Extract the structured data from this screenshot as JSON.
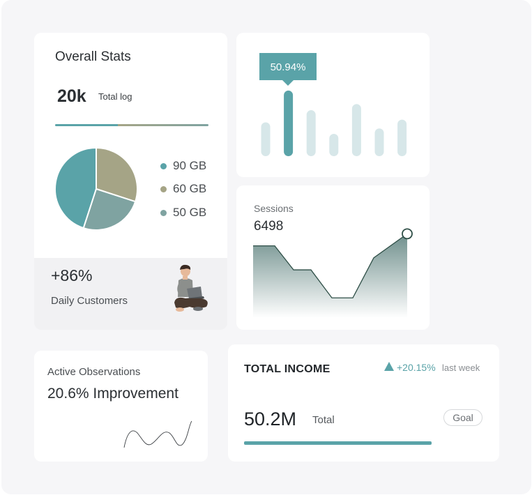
{
  "colors": {
    "teal": "#5aa3a8",
    "olive": "#a5a486",
    "sage": "#7fa3a1",
    "light_teal": "#d7e7e9",
    "dark_line": "#2f4f47"
  },
  "overall_stats": {
    "title": "Overall Stats",
    "total_value": "20k",
    "total_label": "Total log",
    "legend": [
      {
        "label": "90 GB",
        "color": "#5aa3a8"
      },
      {
        "label": "60 GB",
        "color": "#a5a486"
      },
      {
        "label": "50 GB",
        "color": "#7fa3a1"
      }
    ]
  },
  "daily_customers": {
    "value": "+86%",
    "label": "Daily Customers"
  },
  "bars_widget": {
    "tooltip": "50.94%",
    "highlighted_index": 1
  },
  "sessions": {
    "label": "Sessions",
    "value": "6498"
  },
  "active_observations": {
    "label": "Active Observations",
    "value": "20.6% Improvement"
  },
  "total_income": {
    "title": "TOTAL INCOME",
    "trend_icon": "triangle-up-icon",
    "trend": "+20.15%",
    "period": "last week",
    "value": "50.2M",
    "value_label": "Total",
    "goal_label": "Goal"
  },
  "chart_data": [
    {
      "type": "pie",
      "title": "",
      "labels": [
        "90 GB",
        "60 GB",
        "50 GB"
      ],
      "values": [
        90,
        60,
        50
      ],
      "colors": [
        "#5aa3a8",
        "#a5a486",
        "#7fa3a1"
      ]
    },
    {
      "type": "bar",
      "title": "",
      "categories": [
        "1",
        "2",
        "3",
        "4",
        "5",
        "6",
        "7"
      ],
      "values": [
        50,
        97,
        68,
        33,
        77,
        41,
        54
      ],
      "ylim": [
        0,
        100
      ],
      "highlight": {
        "index": 1,
        "label": "50.94%"
      }
    },
    {
      "type": "area",
      "title": "Sessions",
      "x": [
        1,
        2,
        3,
        4,
        5,
        6,
        7,
        8
      ],
      "values": [
        3600,
        3600,
        2400,
        2400,
        1000,
        1000,
        3000,
        4200
      ],
      "ylim": [
        0,
        4700
      ]
    }
  ]
}
